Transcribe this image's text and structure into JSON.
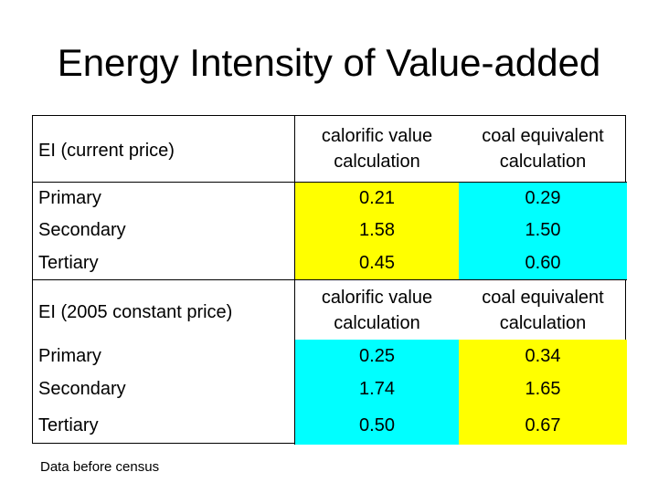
{
  "title": "Energy Intensity of Value-added",
  "table": {
    "columns": [
      "calorific value calculation",
      "coal equivalent calculation"
    ],
    "sections": [
      {
        "label": "EI (current price)",
        "col1_line1": "calorific value",
        "col1_line2": "calculation",
        "col2_line1": "coal equivalent",
        "col2_line2": "calculation",
        "rows": [
          {
            "label": "Primary",
            "calorific": "0.21",
            "coal": "0.29",
            "calorific_color": "#ffff00",
            "coal_color": "#00ffff"
          },
          {
            "label": "Secondary",
            "calorific": "1.58",
            "coal": "1.50",
            "calorific_color": "#ffff00",
            "coal_color": "#00ffff"
          },
          {
            "label": "Tertiary",
            "calorific": "0.45",
            "coal": "0.60",
            "calorific_color": "#ffff00",
            "coal_color": "#00ffff"
          }
        ]
      },
      {
        "label": "EI (2005 constant price)",
        "col1_line1": "calorific value",
        "col1_line2": "calculation",
        "col2_line1": "coal equivalent",
        "col2_line2": "calculation",
        "rows": [
          {
            "label": "Primary",
            "calorific": "0.25",
            "coal": "0.34",
            "calorific_color": "#00ffff",
            "coal_color": "#ffff00"
          },
          {
            "label": "Secondary",
            "calorific": "1.74",
            "coal": "1.65",
            "calorific_color": "#00ffff",
            "coal_color": "#ffff00"
          },
          {
            "label": "Tertiary",
            "calorific": "0.50",
            "coal": "0.67",
            "calorific_color": "#00ffff",
            "coal_color": "#ffff00"
          }
        ]
      }
    ]
  },
  "footnote": "Data before census"
}
